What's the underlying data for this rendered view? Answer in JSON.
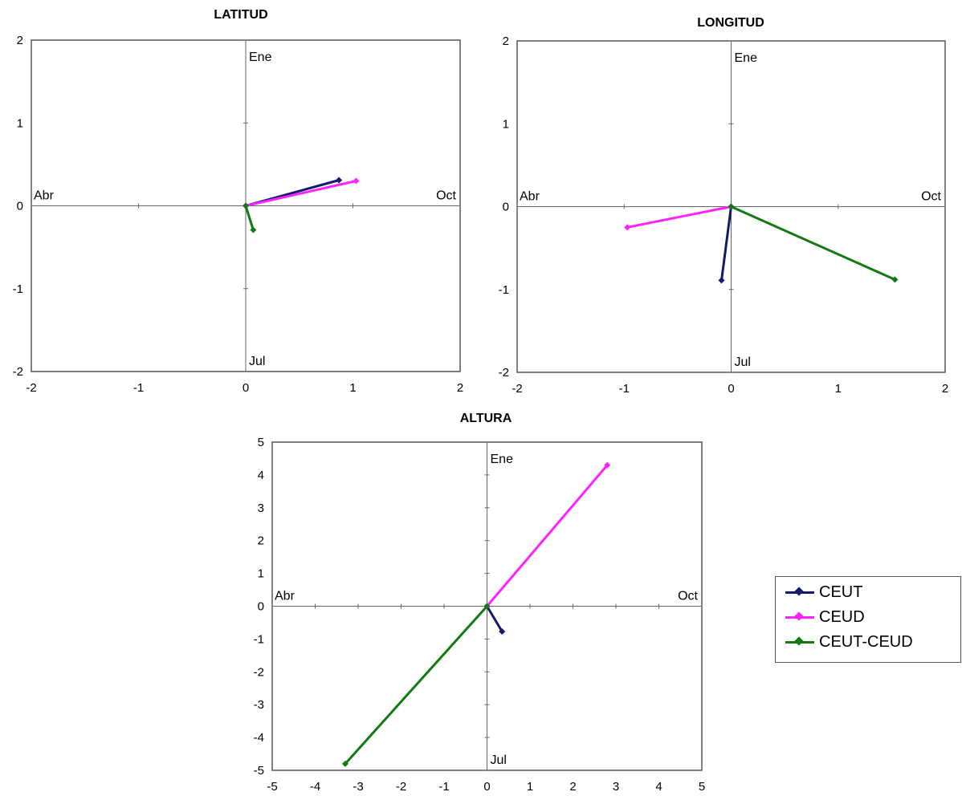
{
  "colors": {
    "CEUT": "#141a6e",
    "CEUD": "#ff22ff",
    "CEUT-CEUD": "#137a13"
  },
  "legend": {
    "items": [
      "CEUT",
      "CEUD",
      "CEUT-CEUD"
    ]
  },
  "chart_data": [
    {
      "id": "latitud",
      "type": "line",
      "title": "LATITUD",
      "xlim": [
        -2,
        2
      ],
      "ylim": [
        -2,
        2
      ],
      "xticks": [
        -2,
        -1,
        0,
        1,
        2
      ],
      "yticks": [
        -2,
        -1,
        0,
        1,
        2
      ],
      "axis_labels": {
        "top": "Ene",
        "bottom": "Jul",
        "left": "Abr",
        "right": "Oct"
      },
      "series": [
        {
          "name": "CEUT",
          "points": [
            [
              0,
              0
            ],
            [
              0.87,
              0.31
            ]
          ]
        },
        {
          "name": "CEUD",
          "points": [
            [
              0,
              0
            ],
            [
              1.03,
              0.3
            ]
          ]
        },
        {
          "name": "CEUT-CEUD",
          "points": [
            [
              0,
              0
            ],
            [
              0.07,
              -0.29
            ]
          ]
        }
      ]
    },
    {
      "id": "longitud",
      "type": "line",
      "title": "LONGITUD",
      "xlim": [
        -2,
        2
      ],
      "ylim": [
        -2,
        2
      ],
      "xticks": [
        -2,
        -1,
        0,
        1,
        2
      ],
      "yticks": [
        -2,
        -1,
        0,
        1,
        2
      ],
      "axis_labels": {
        "top": "Ene",
        "bottom": "Jul",
        "left": "Abr",
        "right": "Oct"
      },
      "series": [
        {
          "name": "CEUT",
          "points": [
            [
              0,
              0
            ],
            [
              -0.09,
              -0.89
            ]
          ]
        },
        {
          "name": "CEUD",
          "points": [
            [
              0,
              0
            ],
            [
              -0.97,
              -0.25
            ]
          ]
        },
        {
          "name": "CEUT-CEUD",
          "points": [
            [
              0,
              0
            ],
            [
              1.53,
              -0.88
            ]
          ]
        }
      ]
    },
    {
      "id": "altura",
      "type": "line",
      "title": "ALTURA",
      "xlim": [
        -5,
        5
      ],
      "ylim": [
        -5,
        5
      ],
      "xticks": [
        -5,
        -4,
        -3,
        -2,
        -1,
        0,
        1,
        2,
        3,
        4,
        5
      ],
      "yticks": [
        -5,
        -4,
        -3,
        -2,
        -1,
        0,
        1,
        2,
        3,
        4,
        5
      ],
      "axis_labels": {
        "top": "Ene",
        "bottom": "Jul",
        "left": "Abr",
        "right": "Oct"
      },
      "series": [
        {
          "name": "CEUT",
          "points": [
            [
              0,
              0
            ],
            [
              0.35,
              -0.77
            ]
          ]
        },
        {
          "name": "CEUD",
          "points": [
            [
              0,
              0
            ],
            [
              2.8,
              4.3
            ]
          ]
        },
        {
          "name": "CEUT-CEUD",
          "points": [
            [
              0,
              0
            ],
            [
              -3.3,
              -4.8
            ]
          ]
        }
      ]
    }
  ]
}
